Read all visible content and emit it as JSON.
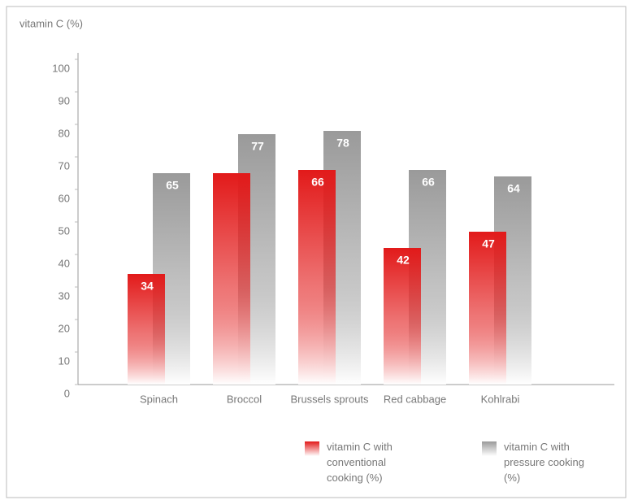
{
  "chart_data": {
    "type": "bar",
    "y_axis_label": "vitamin C (%)",
    "categories": [
      "Spinach",
      "Broccol",
      "Brussels sprouts",
      "Red cabbage",
      "Kohlrabi"
    ],
    "series": [
      {
        "name": "vitamin C with conventional cooking (%)",
        "color": "#e21a1a",
        "values": [
          34,
          65,
          66,
          42,
          47
        ],
        "value_labels": [
          "34",
          null,
          "66",
          "42",
          "47"
        ]
      },
      {
        "name": "vitamin C with pressure cooking (%)",
        "color": "#9a9a9a",
        "values": [
          65,
          77,
          78,
          66,
          64
        ]
      }
    ],
    "ylim": [
      0,
      100
    ],
    "yticks": [
      0,
      10,
      20,
      30,
      40,
      50,
      60,
      70,
      80,
      90,
      100
    ],
    "grid": false
  }
}
